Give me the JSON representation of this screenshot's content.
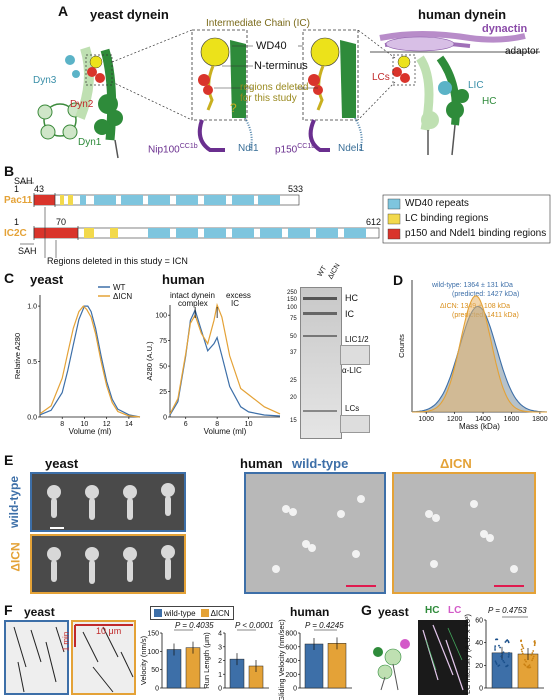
{
  "panels": {
    "A": {
      "letter": "A",
      "title_left": "yeast dynein",
      "title_right": "human dynein",
      "ic_label": "Intermediate Chain (IC)",
      "wd40": "WD40",
      "nterm": "N-terminus",
      "deleted": "regions deleted",
      "deleted2": "for this study",
      "dyn3": "Dyn3",
      "dyn2": "Dyn2",
      "dyn1": "Dyn1",
      "nip100": "Nip100",
      "nip100_sup": "CC1b",
      "ndl1": "Ndl1",
      "p150": "p150",
      "p150_sup": "CC1b",
      "ndel1": "Ndel1",
      "dynactin": "dynactin",
      "adaptor": "adaptor",
      "lcs": "LCs",
      "lic": "LIC",
      "hc": "HC"
    },
    "B": {
      "letter": "B",
      "sah": "SAH",
      "pac11": "Pac11",
      "ic2c": "IC2C",
      "pac11_start": "1",
      "pac11_mark": "43",
      "pac11_end": "533",
      "ic2c_start": "1",
      "ic2c_mark": "70",
      "ic2c_end": "612",
      "deleted_note": "Regions deleted in this study = ICN",
      "legend": [
        "WD40 repeats",
        "LC binding regions",
        "p150 and Ndel1 binding regions"
      ]
    },
    "C": {
      "letter": "C",
      "yeast": "yeast",
      "human": "human",
      "gel_labels": [
        "WT",
        "ΔICN"
      ],
      "gel_bands": [
        "HC",
        "IC",
        "LIC1/2",
        "α-LIC",
        "LCs"
      ],
      "ladder": [
        "250",
        "150",
        "100",
        "75",
        "50",
        "37",
        "25",
        "20",
        "15"
      ],
      "human_annot": [
        "intact dynein",
        "complex",
        "excess",
        "IC"
      ]
    },
    "D": {
      "letter": "D",
      "wt_text": "wild-type: 1364 ± 131 kDa",
      "wt_pred": "(predicted: 1427 kDa)",
      "icn_text": "ΔICN: 1349 ± 108 kDa",
      "icn_pred": "(predicted: 1411 kDa)"
    },
    "E": {
      "letter": "E",
      "yeast": "yeast",
      "human": "human",
      "wt": "wild-type",
      "icn": "ΔICN"
    },
    "F": {
      "letter": "F",
      "yeast": "yeast",
      "human": "human",
      "scale_time": "1 min",
      "scale_len": "10 μm",
      "legend": [
        "wild-type",
        "ΔICN"
      ],
      "p_velocity": "P = 0.4035",
      "p_runlength": "P < 0.0001",
      "p_gliding": "P = 0.4245"
    },
    "G": {
      "letter": "G",
      "yeast": "yeast",
      "hc": "HC",
      "lc": "LC",
      "p_value": "P = 0.4753"
    }
  },
  "colors": {
    "wt": "#3d6fa8",
    "icn": "#e4a237",
    "wd40": "#7ec5de",
    "lc": "#f2d94c",
    "p150": "#d9342b",
    "dynein_green": "#2e8b3a"
  },
  "chart_data": [
    {
      "type": "line",
      "title": "yeast",
      "xlabel": "Volume (ml)",
      "ylabel": "Relative A280",
      "xlim": [
        6,
        15
      ],
      "ylim": [
        0,
        1.1
      ],
      "xticks": [
        8,
        10,
        12,
        14
      ],
      "yticks": [
        0.0,
        0.5,
        1.0
      ],
      "series": [
        {
          "name": "WT",
          "x": [
            6,
            7,
            8,
            8.5,
            9,
            9.5,
            10,
            10.3,
            10.6,
            11,
            11.5,
            12,
            12.5,
            13,
            14,
            15
          ],
          "y": [
            0.02,
            0.06,
            0.22,
            0.42,
            0.65,
            0.88,
            1.0,
            1.0,
            0.95,
            0.8,
            0.55,
            0.32,
            0.16,
            0.07,
            0.02,
            0.0
          ]
        },
        {
          "name": "ΔICN",
          "x": [
            6,
            7,
            8,
            8.5,
            9,
            9.5,
            9.9,
            10.2,
            10.6,
            11,
            11.5,
            12,
            12.5,
            13,
            14,
            15
          ],
          "y": [
            0.03,
            0.1,
            0.35,
            0.58,
            0.8,
            0.95,
            1.0,
            0.97,
            0.9,
            0.75,
            0.5,
            0.28,
            0.13,
            0.05,
            0.01,
            0.0
          ]
        }
      ]
    },
    {
      "type": "line",
      "title": "human",
      "xlabel": "Volume (ml)",
      "ylabel": "A280 (A.U.)",
      "xlim": [
        5,
        12
      ],
      "ylim": [
        0,
        110
      ],
      "xticks": [
        6,
        8,
        10
      ],
      "yticks": [
        0,
        25,
        50,
        75,
        100
      ],
      "series": [
        {
          "name": "WT",
          "x": [
            5,
            5.5,
            6,
            6.3,
            6.6,
            7,
            7.4,
            7.8,
            8,
            8.3,
            8.8,
            9.5,
            10,
            11,
            12
          ],
          "y": [
            2,
            15,
            60,
            95,
            105,
            85,
            65,
            72,
            78,
            60,
            30,
            10,
            5,
            2,
            1
          ]
        },
        {
          "name": "ΔICN",
          "x": [
            5,
            5.5,
            6,
            6.3,
            6.6,
            7,
            7.4,
            7.8,
            8,
            8.3,
            8.8,
            9.5,
            10,
            11,
            12
          ],
          "y": [
            3,
            18,
            62,
            92,
            100,
            82,
            72,
            95,
            110,
            98,
            60,
            28,
            22,
            10,
            3
          ]
        }
      ]
    },
    {
      "type": "area",
      "title": "",
      "xlabel": "Mass (kDa)",
      "ylabel": "Counts",
      "xlim": [
        900,
        1850
      ],
      "xticks": [
        1000,
        1200,
        1400,
        1600,
        1800
      ],
      "series": [
        {
          "name": "wild-type",
          "mean": 1364,
          "sd": 131
        },
        {
          "name": "ΔICN",
          "mean": 1349,
          "sd": 108
        }
      ]
    },
    {
      "type": "bar",
      "title": "",
      "xlabel": "",
      "ylabel": "Velocity (nm/s)",
      "ylim": [
        0,
        150
      ],
      "yticks": [
        0,
        50,
        100,
        150
      ],
      "categories": [
        "wild-type",
        "ΔICN"
      ],
      "values": [
        105,
        110
      ]
    },
    {
      "type": "bar",
      "title": "",
      "xlabel": "",
      "ylabel": "Run Length (μm)",
      "ylim": [
        0,
        4
      ],
      "yticks": [
        0,
        1,
        2,
        3,
        4
      ],
      "categories": [
        "wild-type",
        "ΔICN"
      ],
      "values": [
        2.1,
        1.6
      ]
    },
    {
      "type": "bar",
      "title": "",
      "xlabel": "",
      "ylabel": "Gliding Velocity (nm/sec)",
      "ylim": [
        0,
        800
      ],
      "yticks": [
        0,
        200,
        400,
        600,
        800
      ],
      "categories": [
        "wild-type",
        "ΔICN"
      ],
      "values": [
        640,
        650
      ]
    },
    {
      "type": "bar",
      "title": "",
      "xlabel": "",
      "ylabel": "LC Intensity (A.U. x 10³)",
      "ylim": [
        0,
        60
      ],
      "yticks": [
        0,
        20,
        40,
        60
      ],
      "categories": [
        "wild-type",
        "ΔICN"
      ],
      "values": [
        31,
        30
      ]
    }
  ]
}
